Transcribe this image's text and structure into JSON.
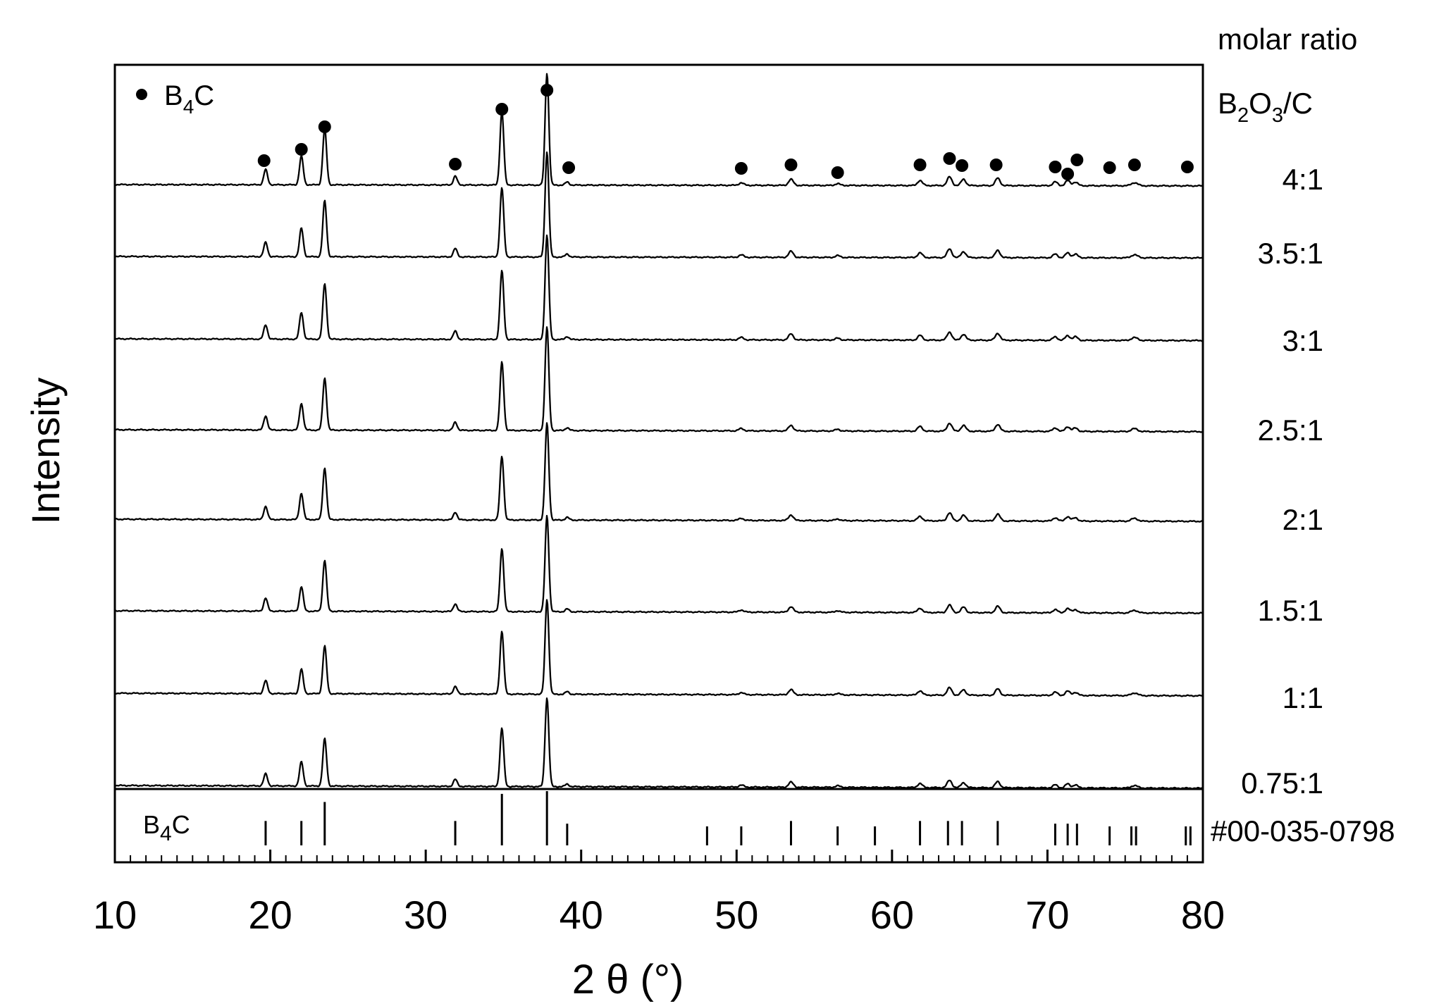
{
  "chart_data": {
    "type": "line",
    "title": "",
    "xlabel": "2 θ (°)",
    "ylabel": "Intensity",
    "xlim": [
      10,
      80
    ],
    "x_ticks": [
      10,
      20,
      30,
      40,
      50,
      60,
      70,
      80
    ],
    "x_tick_labels": [
      "10",
      "20",
      "30",
      "40",
      "50",
      "60",
      "70",
      "80"
    ],
    "legend": {
      "marker": "filled-circle",
      "label": "B",
      "sub": "4",
      "suffix": "C",
      "placement": "top-left"
    },
    "right_header": {
      "line1": "molar ratio",
      "line2_parts": [
        "B",
        "2",
        "O",
        "3",
        "/C"
      ]
    },
    "series": [
      {
        "name": "4:1"
      },
      {
        "name": "3.5:1"
      },
      {
        "name": "3:1"
      },
      {
        "name": "2.5:1"
      },
      {
        "name": "2:1"
      },
      {
        "name": "1.5:1"
      },
      {
        "name": "1:1"
      },
      {
        "name": "0.75:1"
      }
    ],
    "peaks": [
      {
        "x": 19.7,
        "h": 0.12,
        "w": 0.12
      },
      {
        "x": 22.0,
        "h": 0.23,
        "w": 0.12
      },
      {
        "x": 23.5,
        "h": 0.46,
        "w": 0.12
      },
      {
        "x": 31.9,
        "h": 0.07,
        "w": 0.12
      },
      {
        "x": 34.9,
        "h": 0.58,
        "w": 0.12
      },
      {
        "x": 37.8,
        "h": 0.88,
        "w": 0.12
      },
      {
        "x": 39.1,
        "h": 0.025,
        "w": 0.12
      },
      {
        "x": 50.3,
        "h": 0.02,
        "w": 0.15
      },
      {
        "x": 53.5,
        "h": 0.05,
        "w": 0.15
      },
      {
        "x": 56.5,
        "h": 0.015,
        "w": 0.15
      },
      {
        "x": 61.8,
        "h": 0.04,
        "w": 0.15
      },
      {
        "x": 63.7,
        "h": 0.07,
        "w": 0.15
      },
      {
        "x": 64.6,
        "h": 0.05,
        "w": 0.15
      },
      {
        "x": 66.8,
        "h": 0.06,
        "w": 0.15
      },
      {
        "x": 70.5,
        "h": 0.03,
        "w": 0.15
      },
      {
        "x": 71.3,
        "h": 0.04,
        "w": 0.15
      },
      {
        "x": 71.8,
        "h": 0.03,
        "w": 0.15
      },
      {
        "x": 75.6,
        "h": 0.025,
        "w": 0.2
      }
    ],
    "marker_positions": [
      19.6,
      22.0,
      23.5,
      31.9,
      34.9,
      37.8,
      39.2,
      50.3,
      53.5,
      56.5,
      61.8,
      63.7,
      64.5,
      66.7,
      70.5,
      71.3,
      71.9,
      74.0,
      75.6,
      79.0
    ],
    "reference": {
      "label_parts": [
        "B",
        "4",
        "C"
      ],
      "pdf_card": "#00-035-0798",
      "lines": [
        {
          "x": 19.7,
          "rel": 0.45
        },
        {
          "x": 22.0,
          "rel": 0.45
        },
        {
          "x": 23.5,
          "rel": 0.8
        },
        {
          "x": 31.9,
          "rel": 0.45
        },
        {
          "x": 34.9,
          "rel": 0.95
        },
        {
          "x": 37.8,
          "rel": 1.0
        },
        {
          "x": 39.1,
          "rel": 0.4
        },
        {
          "x": 48.1,
          "rel": 0.35
        },
        {
          "x": 50.3,
          "rel": 0.35
        },
        {
          "x": 53.5,
          "rel": 0.45
        },
        {
          "x": 56.5,
          "rel": 0.35
        },
        {
          "x": 58.9,
          "rel": 0.35
        },
        {
          "x": 61.8,
          "rel": 0.45
        },
        {
          "x": 63.6,
          "rel": 0.45
        },
        {
          "x": 64.5,
          "rel": 0.45
        },
        {
          "x": 66.8,
          "rel": 0.45
        },
        {
          "x": 70.5,
          "rel": 0.4
        },
        {
          "x": 71.3,
          "rel": 0.4
        },
        {
          "x": 71.9,
          "rel": 0.4
        },
        {
          "x": 74.0,
          "rel": 0.35
        },
        {
          "x": 75.4,
          "rel": 0.35
        },
        {
          "x": 75.7,
          "rel": 0.35
        },
        {
          "x": 78.9,
          "rel": 0.35
        },
        {
          "x": 79.2,
          "rel": 0.35
        }
      ]
    }
  }
}
